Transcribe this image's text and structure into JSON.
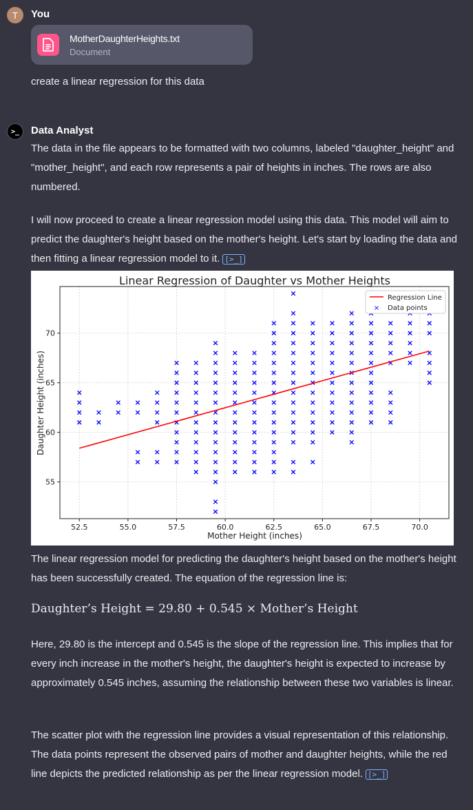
{
  "user": {
    "avatar_initial": "T",
    "name": "You",
    "attachment": {
      "file_name": "MotherDaughterHeights.txt",
      "file_type": "Document",
      "icon": "document-icon",
      "icon_color": "#ff5588"
    },
    "message": "create a linear regression for this data"
  },
  "assistant": {
    "avatar_glyph": ">_",
    "name": "Data Analyst",
    "p1": "The data in the file appears to be formatted with two columns, labeled \"daughter_height\" and \"mother_height\", and each row represents a pair of heights in inches. The rows are also numbered.",
    "p2": "I will now proceed to create a linear regression model using this data. This model will aim to predict the daughter's height based on the mother's height. Let's start by loading the data and then fitting a linear regression model to it.",
    "p3": "The linear regression model for predicting the daughter's height based on the mother's height has been successfully created. The equation of the regression line is:",
    "equation": "Daughter’s Height = 29.80 + 0.545 × Mother’s Height",
    "p4": "Here, 29.80 is the intercept and 0.545 is the slope of the regression line. This implies that for every inch increase in the mother's height, the daughter's height is expected to increase by approximately 0.545 inches, assuming the relationship between these two variables is linear.",
    "p5": "The scatter plot with the regression line provides a visual representation of this relationship. The data points represent the observed pairs of mother and daughter heights, while the red line depicts the predicted relationship as per the linear regression model.",
    "code_icon": "code-output-icon"
  },
  "chart_data": {
    "type": "scatter",
    "title": "Linear Regression of Daughter vs Mother Heights",
    "xlabel": "Mother Height (inches)",
    "ylabel": "Daughter Height (inches)",
    "xlim": [
      51.5,
      71.5
    ],
    "ylim": [
      51.3,
      74.7
    ],
    "xticks": [
      "52.5",
      "55.0",
      "57.5",
      "60.0",
      "62.5",
      "65.0",
      "67.5",
      "70.0"
    ],
    "yticks": [
      "55",
      "60",
      "65",
      "70"
    ],
    "grid": true,
    "legend_position": "top-right",
    "series": [
      {
        "name": "Regression Line",
        "type": "line",
        "color": "#ff0000",
        "x": [
          52.5,
          70.5
        ],
        "y": [
          58.4,
          68.2
        ]
      },
      {
        "name": "Data points",
        "type": "scatter",
        "marker": "x",
        "color": "#0000ff",
        "points": [
          [
            52.5,
            61
          ],
          [
            52.5,
            62
          ],
          [
            52.5,
            63
          ],
          [
            52.5,
            64
          ],
          [
            53.5,
            61
          ],
          [
            53.5,
            62
          ],
          [
            54.5,
            62
          ],
          [
            54.5,
            63
          ],
          [
            55.5,
            57
          ],
          [
            55.5,
            58
          ],
          [
            55.5,
            62
          ],
          [
            55.5,
            63
          ],
          [
            56.5,
            57
          ],
          [
            56.5,
            58
          ],
          [
            56.5,
            61
          ],
          [
            56.5,
            62
          ],
          [
            56.5,
            63
          ],
          [
            56.5,
            64
          ],
          [
            57.5,
            57
          ],
          [
            57.5,
            58
          ],
          [
            57.5,
            59
          ],
          [
            57.5,
            60
          ],
          [
            57.5,
            61
          ],
          [
            57.5,
            62
          ],
          [
            57.5,
            63
          ],
          [
            57.5,
            64
          ],
          [
            57.5,
            65
          ],
          [
            57.5,
            66
          ],
          [
            57.5,
            67
          ],
          [
            58.5,
            56
          ],
          [
            58.5,
            57
          ],
          [
            58.5,
            58
          ],
          [
            58.5,
            59
          ],
          [
            58.5,
            60
          ],
          [
            58.5,
            61
          ],
          [
            58.5,
            62
          ],
          [
            58.5,
            63
          ],
          [
            58.5,
            64
          ],
          [
            58.5,
            65
          ],
          [
            58.5,
            66
          ],
          [
            58.5,
            67
          ],
          [
            59.5,
            52
          ],
          [
            59.5,
            53
          ],
          [
            59.5,
            55
          ],
          [
            59.5,
            56
          ],
          [
            59.5,
            57
          ],
          [
            59.5,
            58
          ],
          [
            59.5,
            59
          ],
          [
            59.5,
            60
          ],
          [
            59.5,
            61
          ],
          [
            59.5,
            62
          ],
          [
            59.5,
            63
          ],
          [
            59.5,
            64
          ],
          [
            59.5,
            65
          ],
          [
            59.5,
            66
          ],
          [
            59.5,
            67
          ],
          [
            59.5,
            68
          ],
          [
            59.5,
            69
          ],
          [
            60.5,
            56
          ],
          [
            60.5,
            57
          ],
          [
            60.5,
            58
          ],
          [
            60.5,
            59
          ],
          [
            60.5,
            60
          ],
          [
            60.5,
            61
          ],
          [
            60.5,
            62
          ],
          [
            60.5,
            63
          ],
          [
            60.5,
            64
          ],
          [
            60.5,
            65
          ],
          [
            60.5,
            66
          ],
          [
            60.5,
            67
          ],
          [
            60.5,
            68
          ],
          [
            61.5,
            56
          ],
          [
            61.5,
            57
          ],
          [
            61.5,
            58
          ],
          [
            61.5,
            59
          ],
          [
            61.5,
            60
          ],
          [
            61.5,
            61
          ],
          [
            61.5,
            62
          ],
          [
            61.5,
            63
          ],
          [
            61.5,
            64
          ],
          [
            61.5,
            65
          ],
          [
            61.5,
            66
          ],
          [
            61.5,
            67
          ],
          [
            61.5,
            68
          ],
          [
            62.5,
            56
          ],
          [
            62.5,
            57
          ],
          [
            62.5,
            58
          ],
          [
            62.5,
            59
          ],
          [
            62.5,
            60
          ],
          [
            62.5,
            61
          ],
          [
            62.5,
            62
          ],
          [
            62.5,
            63
          ],
          [
            62.5,
            64
          ],
          [
            62.5,
            65
          ],
          [
            62.5,
            66
          ],
          [
            62.5,
            67
          ],
          [
            62.5,
            68
          ],
          [
            62.5,
            69
          ],
          [
            62.5,
            70
          ],
          [
            62.5,
            71
          ],
          [
            63.5,
            56
          ],
          [
            63.5,
            57
          ],
          [
            63.5,
            59
          ],
          [
            63.5,
            60
          ],
          [
            63.5,
            61
          ],
          [
            63.5,
            62
          ],
          [
            63.5,
            63
          ],
          [
            63.5,
            64
          ],
          [
            63.5,
            65
          ],
          [
            63.5,
            66
          ],
          [
            63.5,
            67
          ],
          [
            63.5,
            68
          ],
          [
            63.5,
            69
          ],
          [
            63.5,
            70
          ],
          [
            63.5,
            71
          ],
          [
            63.5,
            72
          ],
          [
            63.5,
            74
          ],
          [
            64.5,
            57
          ],
          [
            64.5,
            59
          ],
          [
            64.5,
            60
          ],
          [
            64.5,
            61
          ],
          [
            64.5,
            62
          ],
          [
            64.5,
            63
          ],
          [
            64.5,
            64
          ],
          [
            64.5,
            65
          ],
          [
            64.5,
            66
          ],
          [
            64.5,
            67
          ],
          [
            64.5,
            68
          ],
          [
            64.5,
            69
          ],
          [
            64.5,
            70
          ],
          [
            64.5,
            71
          ],
          [
            65.5,
            60
          ],
          [
            65.5,
            61
          ],
          [
            65.5,
            62
          ],
          [
            65.5,
            63
          ],
          [
            65.5,
            64
          ],
          [
            65.5,
            65
          ],
          [
            65.5,
            66
          ],
          [
            65.5,
            67
          ],
          [
            65.5,
            68
          ],
          [
            65.5,
            69
          ],
          [
            65.5,
            70
          ],
          [
            65.5,
            71
          ],
          [
            66.5,
            59
          ],
          [
            66.5,
            60
          ],
          [
            66.5,
            61
          ],
          [
            66.5,
            62
          ],
          [
            66.5,
            63
          ],
          [
            66.5,
            64
          ],
          [
            66.5,
            65
          ],
          [
            66.5,
            66
          ],
          [
            66.5,
            67
          ],
          [
            66.5,
            68
          ],
          [
            66.5,
            69
          ],
          [
            66.5,
            70
          ],
          [
            66.5,
            71
          ],
          [
            66.5,
            72
          ],
          [
            67.5,
            61
          ],
          [
            67.5,
            62
          ],
          [
            67.5,
            63
          ],
          [
            67.5,
            64
          ],
          [
            67.5,
            65
          ],
          [
            67.5,
            66
          ],
          [
            67.5,
            67
          ],
          [
            67.5,
            68
          ],
          [
            67.5,
            69
          ],
          [
            67.5,
            70
          ],
          [
            67.5,
            71
          ],
          [
            67.5,
            72
          ],
          [
            68.5,
            61
          ],
          [
            68.5,
            62
          ],
          [
            68.5,
            63
          ],
          [
            68.5,
            64
          ],
          [
            68.5,
            67
          ],
          [
            68.5,
            68
          ],
          [
            68.5,
            69
          ],
          [
            68.5,
            70
          ],
          [
            68.5,
            71
          ],
          [
            69.5,
            67
          ],
          [
            69.5,
            68
          ],
          [
            69.5,
            69
          ],
          [
            69.5,
            70
          ],
          [
            69.5,
            71
          ],
          [
            69.5,
            72
          ],
          [
            70.5,
            65
          ],
          [
            70.5,
            66
          ],
          [
            70.5,
            67
          ],
          [
            70.5,
            68
          ],
          [
            70.5,
            70
          ],
          [
            70.5,
            71
          ],
          [
            70.5,
            72
          ]
        ]
      }
    ]
  }
}
